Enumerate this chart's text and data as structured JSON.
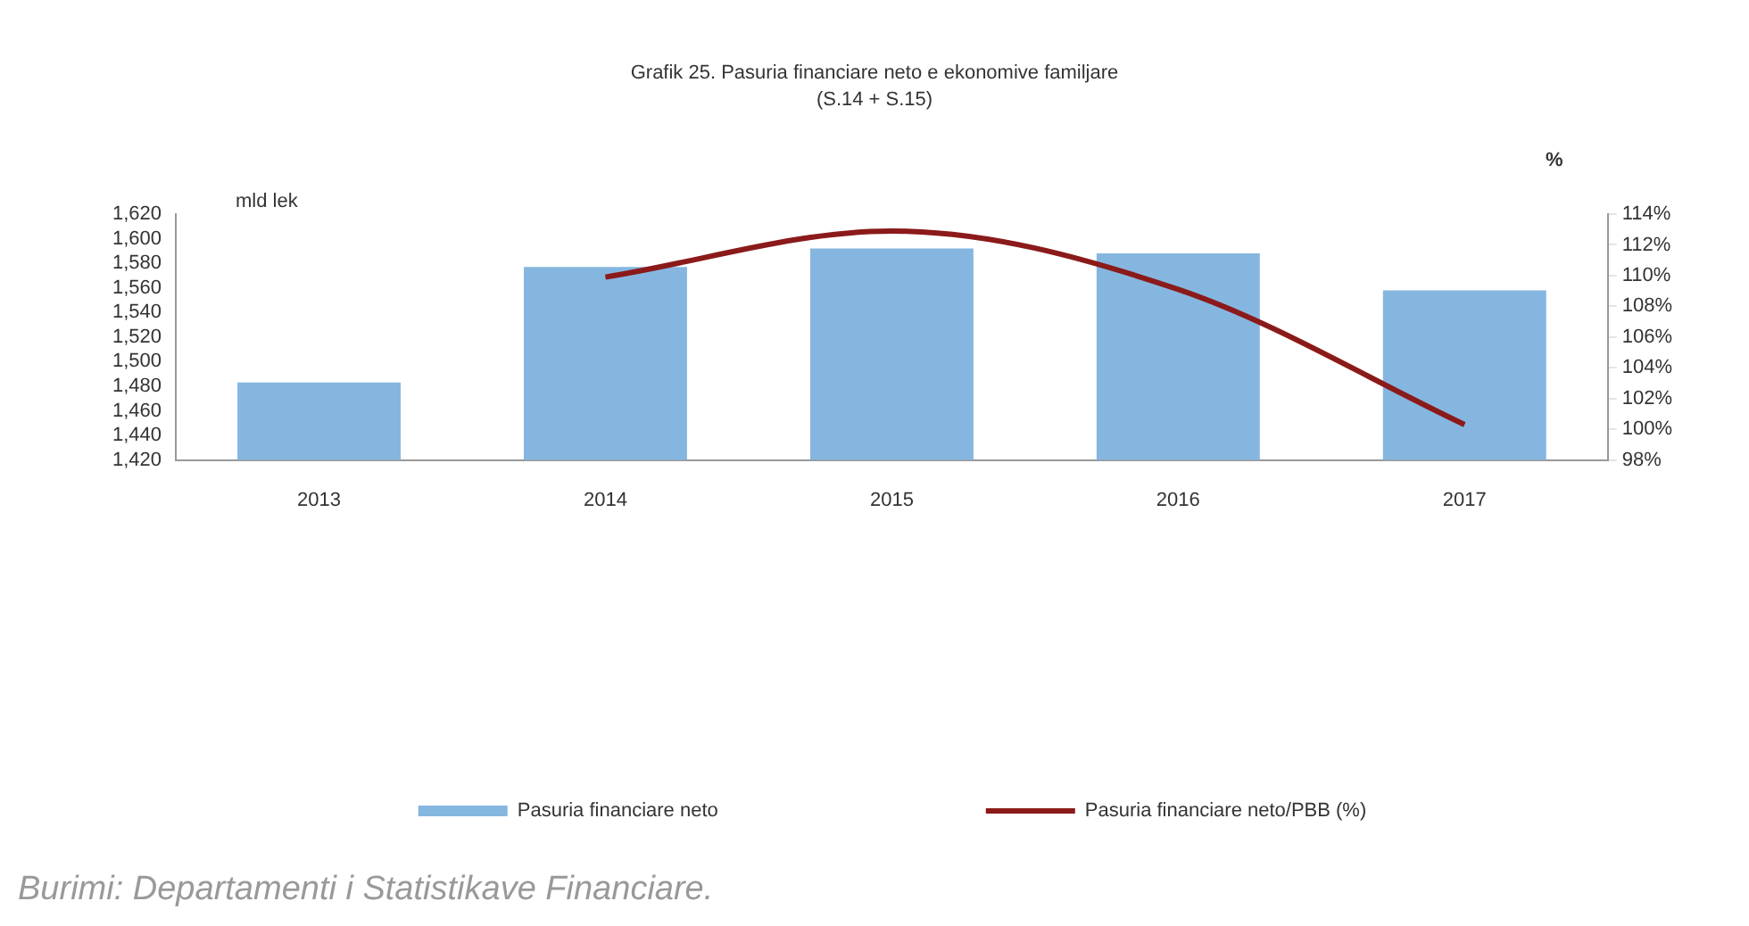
{
  "chart_data": {
    "type": "bar",
    "title": "Grafik 25. Pasuria financiare neto e ekonomive familjare\n(S.14 + S.15)",
    "ylabel": "mld lek",
    "y2label": "%",
    "categories": [
      "2013",
      "2014",
      "2015",
      "2016",
      "2017"
    ],
    "series": [
      {
        "name": "Pasuria financiare neto",
        "color": "#85b6e0",
        "values": [
          1483,
          1577,
          1592,
          1588,
          1558
        ]
      },
      {
        "name": "Pasuria financiare neto/PBB (%)",
        "type": "line",
        "axis": "y2",
        "color": "#8b1a1a",
        "values": [
          null,
          109.9,
          112.9,
          109.1,
          100.3
        ]
      }
    ],
    "ylim": [
      1420,
      1620
    ],
    "yticks": [
      {
        "value": 1420,
        "label": "1,420"
      },
      {
        "value": 1440,
        "label": "1,440"
      },
      {
        "value": 1460,
        "label": "1,460"
      },
      {
        "value": 1480,
        "label": "1,480"
      },
      {
        "value": 1500,
        "label": "1,500"
      },
      {
        "value": 1520,
        "label": "1,520"
      },
      {
        "value": 1540,
        "label": "1,540"
      },
      {
        "value": 1560,
        "label": "1,560"
      },
      {
        "value": 1580,
        "label": "1,580"
      },
      {
        "value": 1600,
        "label": "1,600"
      },
      {
        "value": 1620,
        "label": "1,620"
      }
    ],
    "y2lim": [
      98,
      114
    ],
    "y2ticks": [
      {
        "value": 98,
        "label": "98%"
      },
      {
        "value": 100,
        "label": "100%"
      },
      {
        "value": 102,
        "label": "102%"
      },
      {
        "value": 104,
        "label": "104%"
      },
      {
        "value": 106,
        "label": "106%"
      },
      {
        "value": 108,
        "label": "108%"
      },
      {
        "value": 110,
        "label": "110%"
      },
      {
        "value": 112,
        "label": "112%"
      },
      {
        "value": 114,
        "label": "114%"
      }
    ],
    "grid": false,
    "legend": "bottom",
    "marker": "none",
    "line_style": "solid",
    "annotations": [
      "Burimi: Departamenti i Statistikave Financiare."
    ]
  }
}
